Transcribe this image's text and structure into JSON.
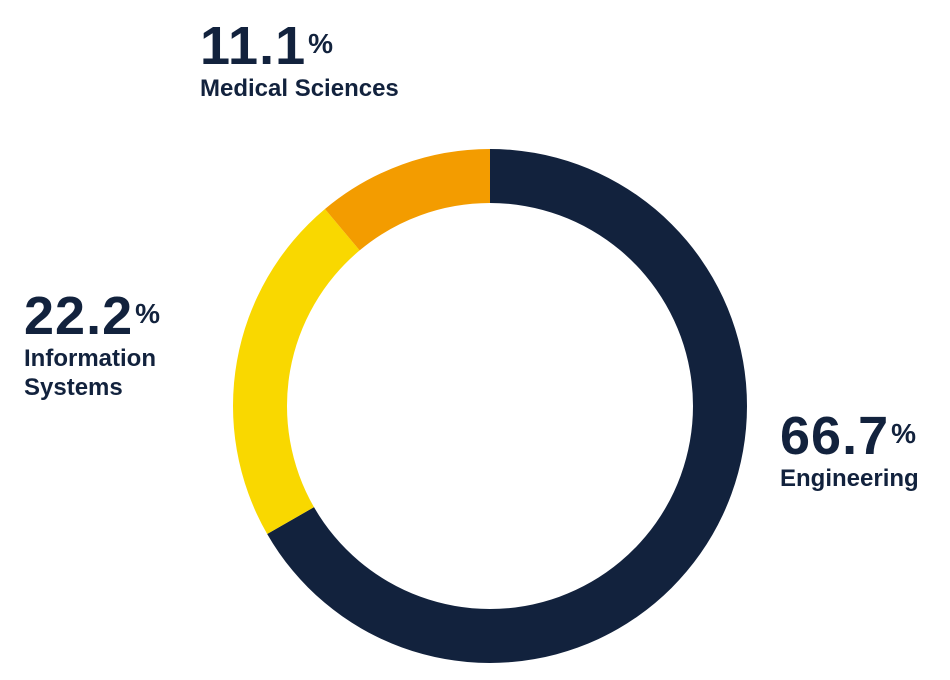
{
  "chart_data": {
    "type": "donut",
    "categories": [
      "Engineering",
      "Information Systems",
      "Medical Sciences"
    ],
    "values": [
      66.7,
      22.2,
      11.1
    ],
    "unit": "%",
    "colors": [
      "#12223d",
      "#f9d800",
      "#f39c00"
    ]
  }
}
